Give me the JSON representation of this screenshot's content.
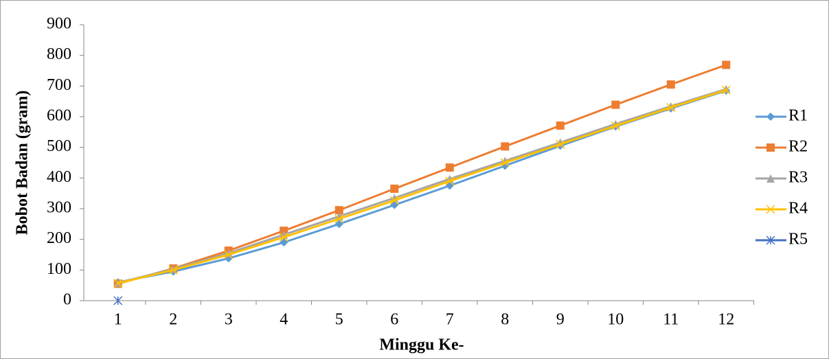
{
  "chart_data": {
    "type": "line",
    "x_label": "Minggu Ke-",
    "y_label": "Bobot Badan (gram)",
    "categories": [
      "1",
      "2",
      "3",
      "4",
      "5",
      "6",
      "7",
      "8",
      "9",
      "10",
      "11",
      "12"
    ],
    "ylim": [
      0,
      900
    ],
    "yticks": [
      0,
      100,
      200,
      300,
      400,
      500,
      600,
      700,
      800,
      900
    ],
    "grid": false,
    "legend": "right",
    "series": [
      {
        "name": "R1",
        "color": "#5b9bd5",
        "marker": "diamond",
        "values": [
          60,
          95,
          138,
          190,
          250,
          312,
          375,
          440,
          505,
          568,
          627,
          685
        ]
      },
      {
        "name": "R2",
        "color": "#ed7d31",
        "marker": "square",
        "values": [
          55,
          105,
          163,
          228,
          295,
          365,
          434,
          503,
          571,
          639,
          705,
          769
        ]
      },
      {
        "name": "R3",
        "color": "#a5a5a5",
        "marker": "triangle",
        "values": [
          58,
          103,
          155,
          215,
          275,
          335,
          397,
          456,
          516,
          576,
          634,
          690
        ]
      },
      {
        "name": "R4",
        "color": "#ffc000",
        "marker": "x",
        "values": [
          57,
          100,
          150,
          207,
          267,
          327,
          390,
          450,
          510,
          570,
          630,
          687
        ]
      },
      {
        "name": "R5",
        "color": "#4472c4",
        "marker": "star",
        "values": [
          0,
          null,
          null,
          null,
          null,
          null,
          null,
          null,
          null,
          null,
          null,
          null
        ]
      }
    ]
  }
}
